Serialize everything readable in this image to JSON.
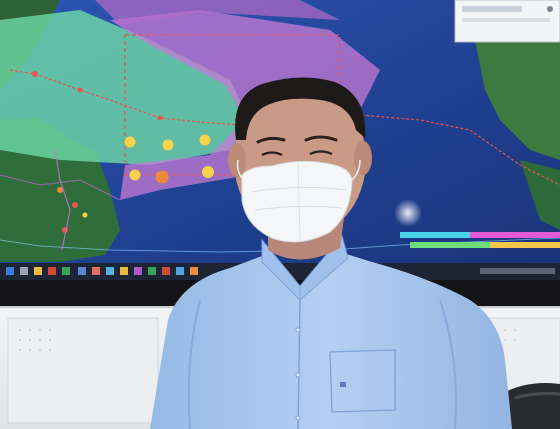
{
  "scene": {
    "background": "#eef1f3",
    "display_wall": {
      "map_water": "#1f3f8f",
      "land": "#2f6d3b",
      "forecast_cone_green": "#6fd9a8",
      "forecast_cone_magenta": "#c77bd6",
      "track_color": "#e8554c",
      "bezel": "#141416"
    },
    "wall_panels": "#f2f3f4",
    "person": {
      "shirt": "#a9c9ef",
      "mask": "#f4f6f8",
      "hair": "#1e1a1a",
      "skin": "#c99a86"
    },
    "chair": "#2a2b2e",
    "icons": [
      "taskbar-icon",
      "overlay-panel-icon"
    ]
  }
}
